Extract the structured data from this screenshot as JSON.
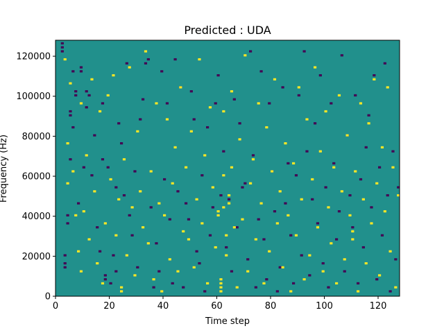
{
  "chart_data": {
    "type": "heatmap",
    "title": "Predicted : UDA",
    "xlabel": "Time step",
    "ylabel": "Frequency (Hz)",
    "xlim": [
      0,
      128
    ],
    "ylim": [
      0,
      128000
    ],
    "xticks": [
      0,
      20,
      40,
      60,
      80,
      100,
      120
    ],
    "yticks": [
      0,
      20000,
      40000,
      60000,
      80000,
      100000,
      120000
    ],
    "ytick_labels": [
      "0",
      "20000",
      "40000",
      "60000",
      "80000",
      "100000",
      "120000"
    ],
    "grid": false,
    "n_time": 128,
    "n_freq": 128,
    "background_value": 0,
    "values_legend": {
      "-1": "#440154",
      "0": "#21908c",
      "1": "#fde725"
    },
    "cells": [
      [
        2,
        126,
        -1
      ],
      [
        2,
        124,
        -1
      ],
      [
        2,
        122,
        -1
      ],
      [
        3,
        20,
        -1
      ],
      [
        3,
        16,
        -1
      ],
      [
        3,
        14,
        -1
      ],
      [
        4,
        40,
        -1
      ],
      [
        4,
        36,
        -1
      ],
      [
        5,
        92,
        -1
      ],
      [
        5,
        90,
        -1
      ],
      [
        5,
        68,
        -1
      ],
      [
        6,
        112,
        -1
      ],
      [
        6,
        84,
        -1
      ],
      [
        7,
        100,
        -1
      ],
      [
        7,
        102,
        -1
      ],
      [
        8,
        46,
        -1
      ],
      [
        9,
        114,
        -1
      ],
      [
        9,
        112,
        -1
      ],
      [
        10,
        64,
        -1
      ],
      [
        11,
        102,
        -1
      ],
      [
        11,
        94,
        -1
      ],
      [
        12,
        100,
        -1
      ],
      [
        13,
        60,
        -1
      ],
      [
        14,
        80,
        -1
      ],
      [
        15,
        34,
        -1
      ],
      [
        16,
        22,
        -1
      ],
      [
        17,
        96,
        -1
      ],
      [
        17,
        68,
        -1
      ],
      [
        18,
        10,
        -1
      ],
      [
        18,
        8,
        -1
      ],
      [
        19,
        64,
        -1
      ],
      [
        20,
        6,
        -1
      ],
      [
        21,
        20,
        -1
      ],
      [
        22,
        12,
        -1
      ],
      [
        22,
        54,
        -1
      ],
      [
        23,
        86,
        -1
      ],
      [
        24,
        76,
        -1
      ],
      [
        25,
        50,
        -1
      ],
      [
        26,
        116,
        -1
      ],
      [
        27,
        40,
        -1
      ],
      [
        28,
        30,
        -1
      ],
      [
        29,
        62,
        -1
      ],
      [
        30,
        14,
        -1
      ],
      [
        31,
        88,
        -1
      ],
      [
        32,
        98,
        -1
      ],
      [
        33,
        116,
        -1
      ],
      [
        34,
        118,
        -1
      ],
      [
        35,
        44,
        -1
      ],
      [
        36,
        4,
        -1
      ],
      [
        37,
        26,
        -1
      ],
      [
        38,
        12,
        -1
      ],
      [
        39,
        112,
        -1
      ],
      [
        40,
        58,
        -1
      ],
      [
        41,
        96,
        -1
      ],
      [
        42,
        38,
        -1
      ],
      [
        43,
        6,
        -1
      ],
      [
        44,
        118,
        -1
      ],
      [
        45,
        52,
        -1
      ],
      [
        46,
        104,
        -1
      ],
      [
        47,
        4,
        -1
      ],
      [
        48,
        46,
        -1
      ],
      [
        49,
        38,
        -1
      ],
      [
        50,
        102,
        -1
      ],
      [
        51,
        88,
        -1
      ],
      [
        52,
        22,
        -1
      ],
      [
        53,
        16,
        -1
      ],
      [
        54,
        60,
        -1
      ],
      [
        55,
        2,
        -1
      ],
      [
        56,
        84,
        -1
      ],
      [
        57,
        30,
        -1
      ],
      [
        58,
        44,
        -1
      ],
      [
        59,
        96,
        -1
      ],
      [
        60,
        110,
        -1
      ],
      [
        61,
        50,
        -1
      ],
      [
        62,
        72,
        -1
      ],
      [
        63,
        24,
        -1
      ],
      [
        64,
        48,
        -1
      ],
      [
        65,
        12,
        -1
      ],
      [
        66,
        98,
        -1
      ],
      [
        67,
        34,
        -1
      ],
      [
        68,
        86,
        -1
      ],
      [
        69,
        54,
        -1
      ],
      [
        70,
        56,
        -1
      ],
      [
        71,
        18,
        -1
      ],
      [
        72,
        122,
        -1
      ],
      [
        73,
        70,
        -1
      ],
      [
        74,
        4,
        -1
      ],
      [
        75,
        38,
        -1
      ],
      [
        76,
        112,
        -1
      ],
      [
        77,
        28,
        -1
      ],
      [
        78,
        8,
        -1
      ],
      [
        79,
        96,
        -1
      ],
      [
        80,
        62,
        -1
      ],
      [
        81,
        42,
        -1
      ],
      [
        82,
        2,
        -1
      ],
      [
        83,
        14,
        -1
      ],
      [
        84,
        104,
        -1
      ],
      [
        85,
        46,
        -1
      ],
      [
        86,
        66,
        -1
      ],
      [
        87,
        30,
        -1
      ],
      [
        88,
        6,
        -1
      ],
      [
        89,
        60,
        -1
      ],
      [
        90,
        100,
        -1
      ],
      [
        91,
        20,
        -1
      ],
      [
        92,
        122,
        -1
      ],
      [
        93,
        72,
        -1
      ],
      [
        94,
        10,
        -1
      ],
      [
        95,
        48,
        -1
      ],
      [
        96,
        86,
        -1
      ],
      [
        97,
        36,
        -1
      ],
      [
        98,
        110,
        -1
      ],
      [
        99,
        16,
        -1
      ],
      [
        100,
        54,
        -1
      ],
      [
        101,
        4,
        -1
      ],
      [
        102,
        96,
        -1
      ],
      [
        103,
        66,
        -1
      ],
      [
        104,
        28,
        -1
      ],
      [
        105,
        42,
        -1
      ],
      [
        106,
        120,
        -1
      ],
      [
        107,
        12,
        -1
      ],
      [
        108,
        80,
        -1
      ],
      [
        109,
        50,
        -1
      ],
      [
        110,
        34,
        -1
      ],
      [
        111,
        100,
        -1
      ],
      [
        112,
        6,
        -1
      ],
      [
        113,
        58,
        -1
      ],
      [
        114,
        24,
        -1
      ],
      [
        115,
        74,
        -1
      ],
      [
        116,
        90,
        -1
      ],
      [
        117,
        44,
        -1
      ],
      [
        118,
        110,
        -1
      ],
      [
        119,
        8,
        -1
      ],
      [
        120,
        64,
        -1
      ],
      [
        121,
        30,
        -1
      ],
      [
        122,
        116,
        -1
      ],
      [
        123,
        50,
        -1
      ],
      [
        124,
        2,
        -1
      ],
      [
        125,
        72,
        -1
      ],
      [
        126,
        18,
        -1
      ],
      [
        127,
        54,
        -1
      ],
      [
        3,
        118,
        1
      ],
      [
        4,
        76,
        1
      ],
      [
        4,
        56,
        1
      ],
      [
        5,
        106,
        1
      ],
      [
        6,
        62,
        1
      ],
      [
        7,
        40,
        1
      ],
      [
        8,
        22,
        1
      ],
      [
        9,
        96,
        1
      ],
      [
        9,
        12,
        1
      ],
      [
        10,
        42,
        1
      ],
      [
        11,
        70,
        1
      ],
      [
        12,
        28,
        1
      ],
      [
        13,
        108,
        1
      ],
      [
        14,
        52,
        1
      ],
      [
        15,
        16,
        1
      ],
      [
        16,
        92,
        1
      ],
      [
        17,
        6,
        1
      ],
      [
        18,
        36,
        1
      ],
      [
        19,
        100,
        1
      ],
      [
        20,
        58,
        1
      ],
      [
        21,
        110,
        1
      ],
      [
        22,
        30,
        1
      ],
      [
        23,
        48,
        1
      ],
      [
        24,
        4,
        1
      ],
      [
        24,
        2,
        1
      ],
      [
        25,
        68,
        1
      ],
      [
        26,
        20,
        1
      ],
      [
        27,
        114,
        1
      ],
      [
        28,
        44,
        1
      ],
      [
        29,
        10,
        1
      ],
      [
        30,
        82,
        1
      ],
      [
        31,
        52,
        1
      ],
      [
        32,
        34,
        1
      ],
      [
        33,
        122,
        1
      ],
      [
        34,
        26,
        1
      ],
      [
        35,
        62,
        1
      ],
      [
        36,
        8,
        1
      ],
      [
        37,
        96,
        1
      ],
      [
        38,
        46,
        1
      ],
      [
        39,
        2,
        1
      ],
      [
        40,
        40,
        1
      ],
      [
        41,
        88,
        1
      ],
      [
        42,
        18,
        1
      ],
      [
        43,
        56,
        1
      ],
      [
        44,
        74,
        1
      ],
      [
        45,
        12,
        1
      ],
      [
        46,
        104,
        1
      ],
      [
        47,
        32,
        1
      ],
      [
        48,
        64,
        1
      ],
      [
        49,
        28,
        1
      ],
      [
        50,
        82,
        1
      ],
      [
        51,
        14,
        1
      ],
      [
        52,
        48,
        1
      ],
      [
        53,
        118,
        1
      ],
      [
        54,
        36,
        1
      ],
      [
        55,
        70,
        1
      ],
      [
        56,
        6,
        1
      ],
      [
        57,
        94,
        1
      ],
      [
        58,
        54,
        1
      ],
      [
        59,
        24,
        1
      ],
      [
        60,
        42,
        1
      ],
      [
        60,
        40,
        1
      ],
      [
        61,
        8,
        1
      ],
      [
        61,
        6,
        1
      ],
      [
        61,
        4,
        1
      ],
      [
        61,
        2,
        1
      ],
      [
        62,
        92,
        1
      ],
      [
        62,
        60,
        1
      ],
      [
        62,
        44,
        1
      ],
      [
        63,
        30,
        1
      ],
      [
        63,
        20,
        1
      ],
      [
        64,
        50,
        1
      ],
      [
        64,
        46,
        1
      ],
      [
        65,
        102,
        1
      ],
      [
        65,
        64,
        1
      ],
      [
        66,
        34,
        1
      ],
      [
        67,
        4,
        1
      ],
      [
        68,
        78,
        1
      ],
      [
        69,
        38,
        1
      ],
      [
        70,
        120,
        1
      ],
      [
        71,
        12,
        1
      ],
      [
        72,
        56,
        1
      ],
      [
        73,
        68,
        1
      ],
      [
        74,
        28,
        1
      ],
      [
        75,
        96,
        1
      ],
      [
        76,
        46,
        1
      ],
      [
        77,
        6,
        1
      ],
      [
        78,
        84,
        1
      ],
      [
        79,
        22,
        1
      ],
      [
        80,
        62,
        1
      ],
      [
        81,
        108,
        1
      ],
      [
        82,
        36,
        1
      ],
      [
        83,
        52,
        1
      ],
      [
        84,
        14,
        1
      ],
      [
        85,
        76,
        1
      ],
      [
        86,
        40,
        1
      ],
      [
        87,
        2,
        1
      ],
      [
        88,
        66,
        1
      ],
      [
        89,
        30,
        1
      ],
      [
        90,
        104,
        1
      ],
      [
        91,
        48,
        1
      ],
      [
        92,
        8,
        1
      ],
      [
        93,
        88,
        1
      ],
      [
        94,
        20,
        1
      ],
      [
        95,
        58,
        1
      ],
      [
        96,
        114,
        1
      ],
      [
        97,
        34,
        1
      ],
      [
        98,
        72,
        1
      ],
      [
        99,
        12,
        1
      ],
      [
        100,
        92,
        1
      ],
      [
        101,
        44,
        1
      ],
      [
        102,
        26,
        1
      ],
      [
        103,
        64,
        1
      ],
      [
        104,
        6,
        1
      ],
      [
        105,
        100,
        1
      ],
      [
        106,
        52,
        1
      ],
      [
        107,
        18,
        1
      ],
      [
        108,
        80,
        1
      ],
      [
        109,
        40,
        1
      ],
      [
        110,
        28,
        1
      ],
      [
        110,
        32,
        1
      ],
      [
        111,
        62,
        1
      ],
      [
        112,
        2,
        1
      ],
      [
        113,
        96,
        1
      ],
      [
        114,
        48,
        1
      ],
      [
        115,
        16,
        1
      ],
      [
        116,
        86,
        1
      ],
      [
        117,
        36,
        1
      ],
      [
        118,
        108,
        1
      ],
      [
        119,
        56,
        1
      ],
      [
        120,
        10,
        1
      ],
      [
        121,
        74,
        1
      ],
      [
        122,
        42,
        1
      ],
      [
        123,
        104,
        1
      ],
      [
        124,
        22,
        1
      ],
      [
        125,
        64,
        1
      ],
      [
        126,
        4,
        1
      ],
      [
        127,
        50,
        1
      ]
    ]
  }
}
